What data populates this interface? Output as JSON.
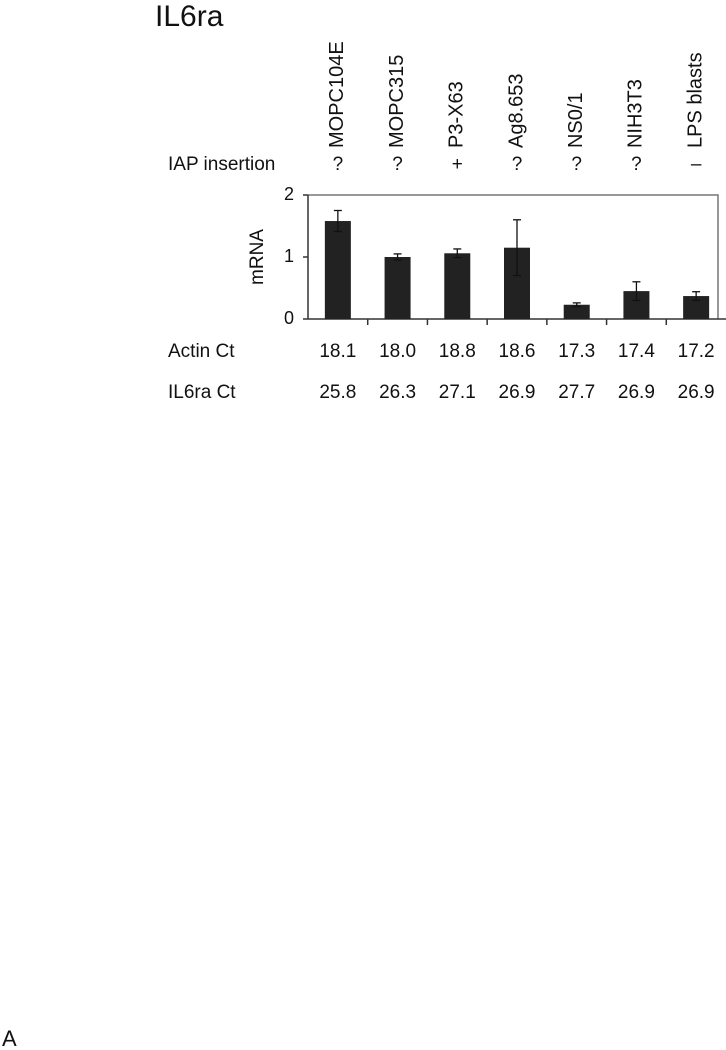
{
  "chart_data": {
    "type": "bar",
    "title": "IL6ra",
    "categories": [
      "MOPC104E",
      "MOPC315",
      "P3-X63",
      "Ag8.653",
      "NS0/1",
      "NIH3T3",
      "LPS blasts"
    ],
    "y_label": "mRNA",
    "series": [
      {
        "color": "#222222",
        "values": [
          1.58,
          1.0,
          1.06,
          1.15,
          0.23,
          0.45,
          0.37
        ],
        "errors": [
          0.17,
          0.05,
          0.07,
          0.45,
          0.03,
          0.15,
          0.07
        ]
      }
    ],
    "ylim": [
      0,
      2
    ],
    "yticks": [
      0,
      1,
      2
    ],
    "iap_insertion": {
      "label": "IAP insertion",
      "values": [
        "?",
        "?",
        "+",
        "?",
        "?",
        "?",
        "–"
      ]
    },
    "rows": [
      {
        "label": "Actin Ct",
        "values": [
          "18.1",
          "18.0",
          "18.8",
          "18.6",
          "17.3",
          "17.4",
          "17.2"
        ]
      },
      {
        "label": "IL6ra Ct",
        "values": [
          "25.8",
          "26.3",
          "27.1",
          "26.9",
          "27.7",
          "26.9",
          "26.9"
        ]
      }
    ],
    "panel_label": "A"
  }
}
